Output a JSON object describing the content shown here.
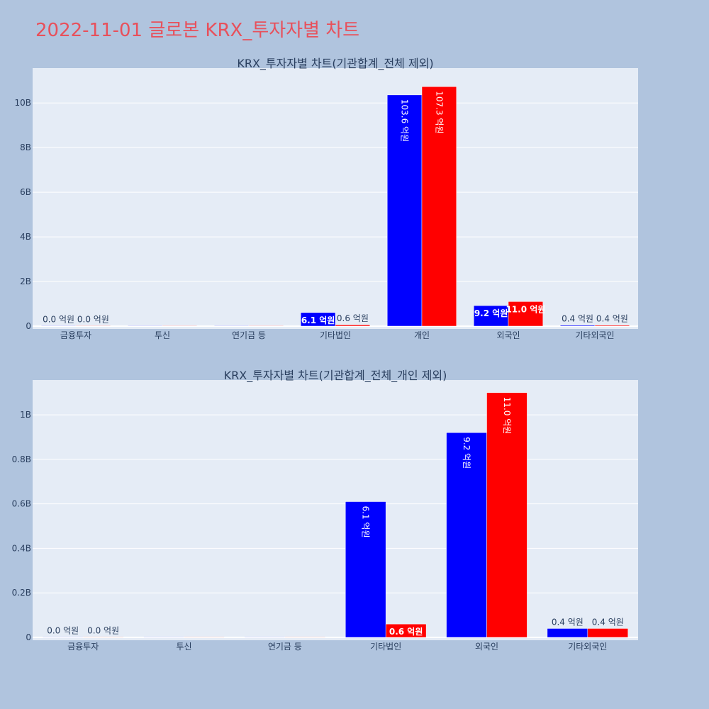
{
  "page": {
    "title": "2022-11-01 글로본 KRX_투자자별 차트",
    "background": "#b0c4de",
    "title_color": "#e8505b",
    "plot_background": "#e5ecf6"
  },
  "chart_data": [
    {
      "type": "bar",
      "title": "KRX_투자자별 차트(기관합계_전체 제외)",
      "xlabel": "",
      "ylabel": "",
      "categories": [
        "금융투자",
        "투신",
        "연기금 등",
        "기타법인",
        "개인",
        "외국인",
        "기타외국인"
      ],
      "series": [
        {
          "color": "#0000ff",
          "values": [
            0,
            0,
            0,
            610000000,
            10360000000,
            920000000,
            40000000
          ],
          "labels": [
            "0.0 억원",
            "",
            "",
            "6.1 억원",
            "103.6 억원",
            "9.2 억원",
            "0.4 억원"
          ]
        },
        {
          "color": "#ff0000",
          "values": [
            0,
            0,
            0,
            60000000,
            10730000000,
            1100000000,
            40000000
          ],
          "labels": [
            "0.0 억원",
            "",
            "",
            "0.6 억원",
            "107.3 억원",
            "11.0 억원",
            "0.4 억원"
          ]
        }
      ],
      "ylim": [
        0,
        11500000000
      ],
      "yticks": [
        0,
        2000000000,
        4000000000,
        6000000000,
        8000000000,
        10000000000
      ],
      "ytick_labels": [
        "0",
        "2B",
        "4B",
        "6B",
        "8B",
        "10B"
      ],
      "grid": true
    },
    {
      "type": "bar",
      "title": "KRX_투자자별 차트(기관합계_전체_개인 제외)",
      "xlabel": "",
      "ylabel": "",
      "categories": [
        "금융투자",
        "투신",
        "연기금 등",
        "기타법인",
        "외국인",
        "기타외국인"
      ],
      "series": [
        {
          "color": "#0000ff",
          "values": [
            0,
            0,
            0,
            610000000,
            920000000,
            40000000
          ],
          "labels": [
            "0.0 억원",
            "",
            "",
            "6.1 억원",
            "9.2 억원",
            "0.4 억원"
          ]
        },
        {
          "color": "#ff0000",
          "values": [
            0,
            0,
            0,
            60000000,
            1100000000,
            40000000
          ],
          "labels": [
            "0.0 억원",
            "",
            "",
            "0.6 억원",
            "11.0 억원",
            "0.4 억원"
          ]
        }
      ],
      "ylim": [
        0,
        1150000000
      ],
      "yticks": [
        0,
        200000000,
        400000000,
        600000000,
        800000000,
        1000000000
      ],
      "ytick_labels": [
        "0",
        "0.2B",
        "0.4B",
        "0.6B",
        "0.8B",
        "1B"
      ],
      "grid": true
    }
  ]
}
